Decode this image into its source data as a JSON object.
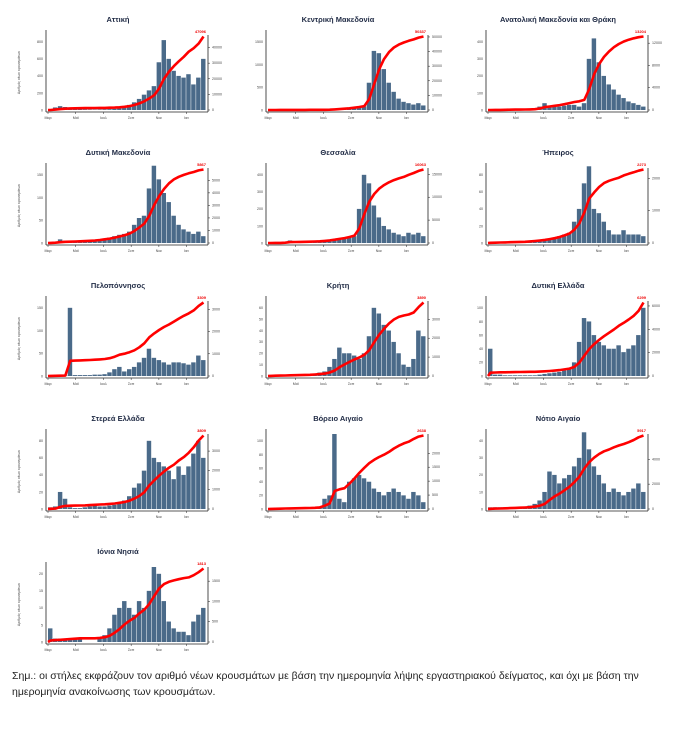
{
  "note": "Σημ.: οι στήλες εκφράζουν τον αριθμό νέων κρουσμάτων με βάση την ημερομηνία λήψης εργαστηριακού δείγματος, και όχι με βάση την ημερομηνία ανακοίνωσης των κρουσμάτων.",
  "chart_data": [
    {
      "type": "bar+line",
      "title": "Αττική",
      "ylabel": "Αριθμός νέων κρουσμάτων",
      "xticks": [
        "Μαρ",
        "Μαϊ",
        "Ιουλ",
        "Σεπ",
        "Νοε",
        "Ιαν"
      ],
      "yticks": [
        0,
        200,
        400,
        600,
        800
      ],
      "y2ticks": [
        0,
        10000,
        20000,
        30000,
        40000
      ],
      "cumulative_final": "47096",
      "series_color": "#4a6a89",
      "line_color": "#ff0000",
      "values": [
        2,
        30,
        45,
        35,
        20,
        10,
        8,
        6,
        5,
        5,
        6,
        8,
        10,
        15,
        25,
        40,
        60,
        90,
        130,
        180,
        230,
        280,
        560,
        820,
        600,
        460,
        400,
        380,
        420,
        300,
        380,
        600
      ]
    },
    {
      "type": "bar+line",
      "title": "Κεντρική Μακεδονία",
      "ylabel": "",
      "xticks": [
        "Μαρ",
        "Μαϊ",
        "Ιουλ",
        "Σεπ",
        "Νοε",
        "Ιαν"
      ],
      "yticks": [
        0,
        500,
        1000,
        1500
      ],
      "y2ticks": [
        0,
        10000,
        20000,
        30000,
        40000,
        50000
      ],
      "cumulative_final": "50337",
      "series_color": "#4a6a89",
      "line_color": "#ff0000",
      "values": [
        1,
        2,
        3,
        2,
        1,
        1,
        1,
        1,
        1,
        1,
        2,
        4,
        8,
        20,
        30,
        30,
        40,
        50,
        60,
        80,
        600,
        1300,
        1250,
        900,
        600,
        400,
        250,
        180,
        150,
        120,
        150,
        100
      ]
    },
    {
      "type": "bar+line",
      "title": "Ανατολική Μακεδονία και Θράκη",
      "ylabel": "",
      "xticks": [
        "Μαρ",
        "Μαϊ",
        "Ιουλ",
        "Σεπ",
        "Νοε",
        "Ιαν"
      ],
      "yticks": [
        0,
        100,
        200,
        300,
        400
      ],
      "y2ticks": [
        0,
        4000,
        8000,
        12000
      ],
      "cumulative_final": "13204",
      "series_color": "#4a6a89",
      "line_color": "#ff0000",
      "values": [
        1,
        1,
        1,
        2,
        3,
        2,
        2,
        2,
        3,
        5,
        20,
        40,
        15,
        20,
        20,
        25,
        30,
        30,
        20,
        40,
        300,
        420,
        280,
        200,
        150,
        120,
        90,
        70,
        50,
        40,
        30,
        20
      ]
    },
    {
      "type": "bar+line",
      "title": "Δυτική Μακεδονία",
      "ylabel": "Αριθμός νέων κρουσμάτων",
      "xticks": [
        "Μαρ",
        "Μαϊ",
        "Ιουλ",
        "Σεπ",
        "Νοε",
        "Ιαν"
      ],
      "yticks": [
        0,
        50,
        100,
        150
      ],
      "y2ticks": [
        0,
        1000,
        2000,
        3000,
        4000,
        5000
      ],
      "cumulative_final": "5867",
      "series_color": "#4a6a89",
      "line_color": "#ff0000",
      "values": [
        2,
        3,
        8,
        5,
        3,
        3,
        3,
        3,
        4,
        5,
        8,
        10,
        12,
        15,
        18,
        20,
        25,
        40,
        55,
        60,
        120,
        170,
        140,
        110,
        90,
        60,
        40,
        30,
        25,
        20,
        25,
        15
      ]
    },
    {
      "type": "bar+line",
      "title": "Θεσσαλία",
      "ylabel": "",
      "xticks": [
        "Μαρ",
        "Μαϊ",
        "Ιουλ",
        "Σεπ",
        "Νοε",
        "Ιαν"
      ],
      "yticks": [
        0,
        100,
        200,
        300,
        400
      ],
      "y2ticks": [
        0,
        5000,
        10000,
        15000
      ],
      "cumulative_final": "16063",
      "series_color": "#4a6a89",
      "line_color": "#ff0000",
      "values": [
        1,
        1,
        2,
        5,
        15,
        3,
        3,
        3,
        3,
        5,
        8,
        10,
        15,
        20,
        20,
        25,
        30,
        40,
        200,
        400,
        350,
        220,
        150,
        100,
        80,
        60,
        50,
        40,
        60,
        50,
        60,
        40
      ]
    },
    {
      "type": "bar+line",
      "title": "Ήπειρος",
      "ylabel": "",
      "xticks": [
        "Μαρ",
        "Μαϊ",
        "Ιουλ",
        "Σεπ",
        "Νοε",
        "Ιαν"
      ],
      "yticks": [
        0,
        20,
        40,
        60,
        80
      ],
      "y2ticks": [
        0,
        1000,
        2000
      ],
      "cumulative_final": "2273",
      "series_color": "#4a6a89",
      "line_color": "#ff0000",
      "values": [
        1,
        1,
        1,
        1,
        1,
        1,
        1,
        1,
        2,
        3,
        3,
        4,
        5,
        6,
        8,
        10,
        12,
        25,
        40,
        70,
        90,
        40,
        35,
        25,
        15,
        10,
        10,
        15,
        10,
        10,
        10,
        8
      ]
    },
    {
      "type": "bar+line",
      "title": "Πελοπόννησος",
      "ylabel": "Αριθμός νέων κρουσμάτων",
      "xticks": [
        "Μαρ",
        "Μαϊ",
        "Ιουλ",
        "Σεπ",
        "Νοε",
        "Ιαν"
      ],
      "yticks": [
        0,
        50,
        100,
        150
      ],
      "y2ticks": [
        0,
        1000,
        2000,
        3000
      ],
      "cumulative_final": "3309",
      "series_color": "#4a6a89",
      "line_color": "#ff0000",
      "values": [
        1,
        1,
        1,
        1,
        150,
        2,
        2,
        2,
        2,
        3,
        3,
        4,
        8,
        15,
        20,
        10,
        15,
        20,
        30,
        40,
        60,
        40,
        35,
        30,
        25,
        30,
        30,
        28,
        25,
        30,
        45,
        35
      ]
    },
    {
      "type": "bar+line",
      "title": "Κρήτη",
      "ylabel": "",
      "xticks": [
        "Μαρ",
        "Μαϊ",
        "Ιουλ",
        "Σεπ",
        "Νοε",
        "Ιαν"
      ],
      "yticks": [
        0,
        10,
        20,
        30,
        40,
        50,
        60
      ],
      "y2ticks": [
        0,
        1000,
        2000,
        3000
      ],
      "cumulative_final": "3890",
      "series_color": "#4a6a89",
      "line_color": "#ff0000",
      "values": [
        1,
        1,
        1,
        1,
        1,
        1,
        1,
        1,
        1,
        2,
        3,
        4,
        8,
        15,
        25,
        20,
        20,
        18,
        15,
        20,
        35,
        60,
        55,
        45,
        40,
        30,
        20,
        10,
        8,
        15,
        40,
        35
      ]
    },
    {
      "type": "bar+line",
      "title": "Δυτική Ελλάδα",
      "ylabel": "",
      "xticks": [
        "Μαρ",
        "Μαϊ",
        "Ιουλ",
        "Σεπ",
        "Νοε",
        "Ιαν"
      ],
      "yticks": [
        0,
        20,
        40,
        60,
        80,
        100
      ],
      "y2ticks": [
        0,
        2000,
        4000,
        6000
      ],
      "cumulative_final": "6299",
      "series_color": "#4a6a89",
      "line_color": "#ff0000",
      "values": [
        40,
        2,
        2,
        1,
        1,
        1,
        1,
        1,
        1,
        1,
        2,
        3,
        4,
        5,
        6,
        8,
        10,
        20,
        50,
        85,
        80,
        60,
        50,
        45,
        40,
        40,
        45,
        35,
        40,
        45,
        60,
        100
      ]
    },
    {
      "type": "bar+line",
      "title": "Στερεά Ελλάδα",
      "ylabel": "Αριθμός νέων κρουσμάτων",
      "xticks": [
        "Μαρ",
        "Μαϊ",
        "Ιουλ",
        "Σεπ",
        "Νοε",
        "Ιαν"
      ],
      "yticks": [
        0,
        20,
        40,
        60,
        80
      ],
      "y2ticks": [
        0,
        1000,
        2000,
        3000
      ],
      "cumulative_final": "3809",
      "series_color": "#4a6a89",
      "line_color": "#ff0000",
      "values": [
        2,
        3,
        20,
        12,
        2,
        1,
        1,
        2,
        3,
        4,
        3,
        3,
        4,
        5,
        8,
        10,
        15,
        25,
        30,
        45,
        80,
        60,
        55,
        50,
        45,
        35,
        50,
        40,
        50,
        65,
        80,
        60
      ]
    },
    {
      "type": "bar+line",
      "title": "Βόρειο Αιγαίο",
      "ylabel": "",
      "xticks": [
        "Μαρ",
        "Μαϊ",
        "Ιουλ",
        "Σεπ",
        "Νοε",
        "Ιαν"
      ],
      "yticks": [
        0,
        20,
        40,
        60,
        80,
        100
      ],
      "y2ticks": [
        0,
        500,
        1000,
        1500,
        2000
      ],
      "cumulative_final": "2638",
      "series_color": "#4a6a89",
      "line_color": "#ff0000",
      "values": [
        1,
        1,
        1,
        1,
        1,
        1,
        1,
        1,
        1,
        2,
        3,
        15,
        20,
        110,
        15,
        10,
        40,
        45,
        50,
        45,
        40,
        30,
        25,
        20,
        25,
        30,
        25,
        20,
        15,
        25,
        20,
        10
      ]
    },
    {
      "type": "bar+line",
      "title": "Νότιο Αιγαίο",
      "ylabel": "",
      "xticks": [
        "Μαϊ",
        "Ιουλ",
        "Σεπ",
        "Νοε",
        "Ιαν"
      ],
      "yticks": [
        0,
        10,
        20,
        30,
        40
      ],
      "y2ticks": [
        0,
        2000,
        4000
      ],
      "cumulative_final": "5917",
      "series_color": "#4a6a89",
      "line_color": "#ff0000",
      "values": [
        1,
        1,
        1,
        1,
        1,
        1,
        1,
        1,
        2,
        3,
        5,
        10,
        22,
        20,
        15,
        18,
        20,
        25,
        30,
        45,
        35,
        25,
        20,
        15,
        10,
        12,
        10,
        8,
        10,
        12,
        15,
        10
      ]
    },
    {
      "type": "bar+line",
      "title": "Ιόνια Νησιά",
      "ylabel": "Αριθμός νέων κρουσμάτων",
      "xticks": [
        "Μαρ",
        "Μαϊ",
        "Ιουλ",
        "Σεπ",
        "Νοε",
        "Ιαν"
      ],
      "yticks": [
        0,
        5,
        10,
        15,
        20
      ],
      "y2ticks": [
        0,
        500,
        1000,
        1500
      ],
      "cumulative_final": "1813",
      "series_color": "#4a6a89",
      "line_color": "#ff0000",
      "values": [
        4,
        1,
        1,
        1,
        1,
        1,
        1,
        0,
        0,
        0,
        1,
        2,
        4,
        8,
        10,
        12,
        10,
        8,
        12,
        10,
        15,
        22,
        20,
        12,
        6,
        4,
        3,
        3,
        2,
        6,
        8,
        10
      ]
    }
  ]
}
